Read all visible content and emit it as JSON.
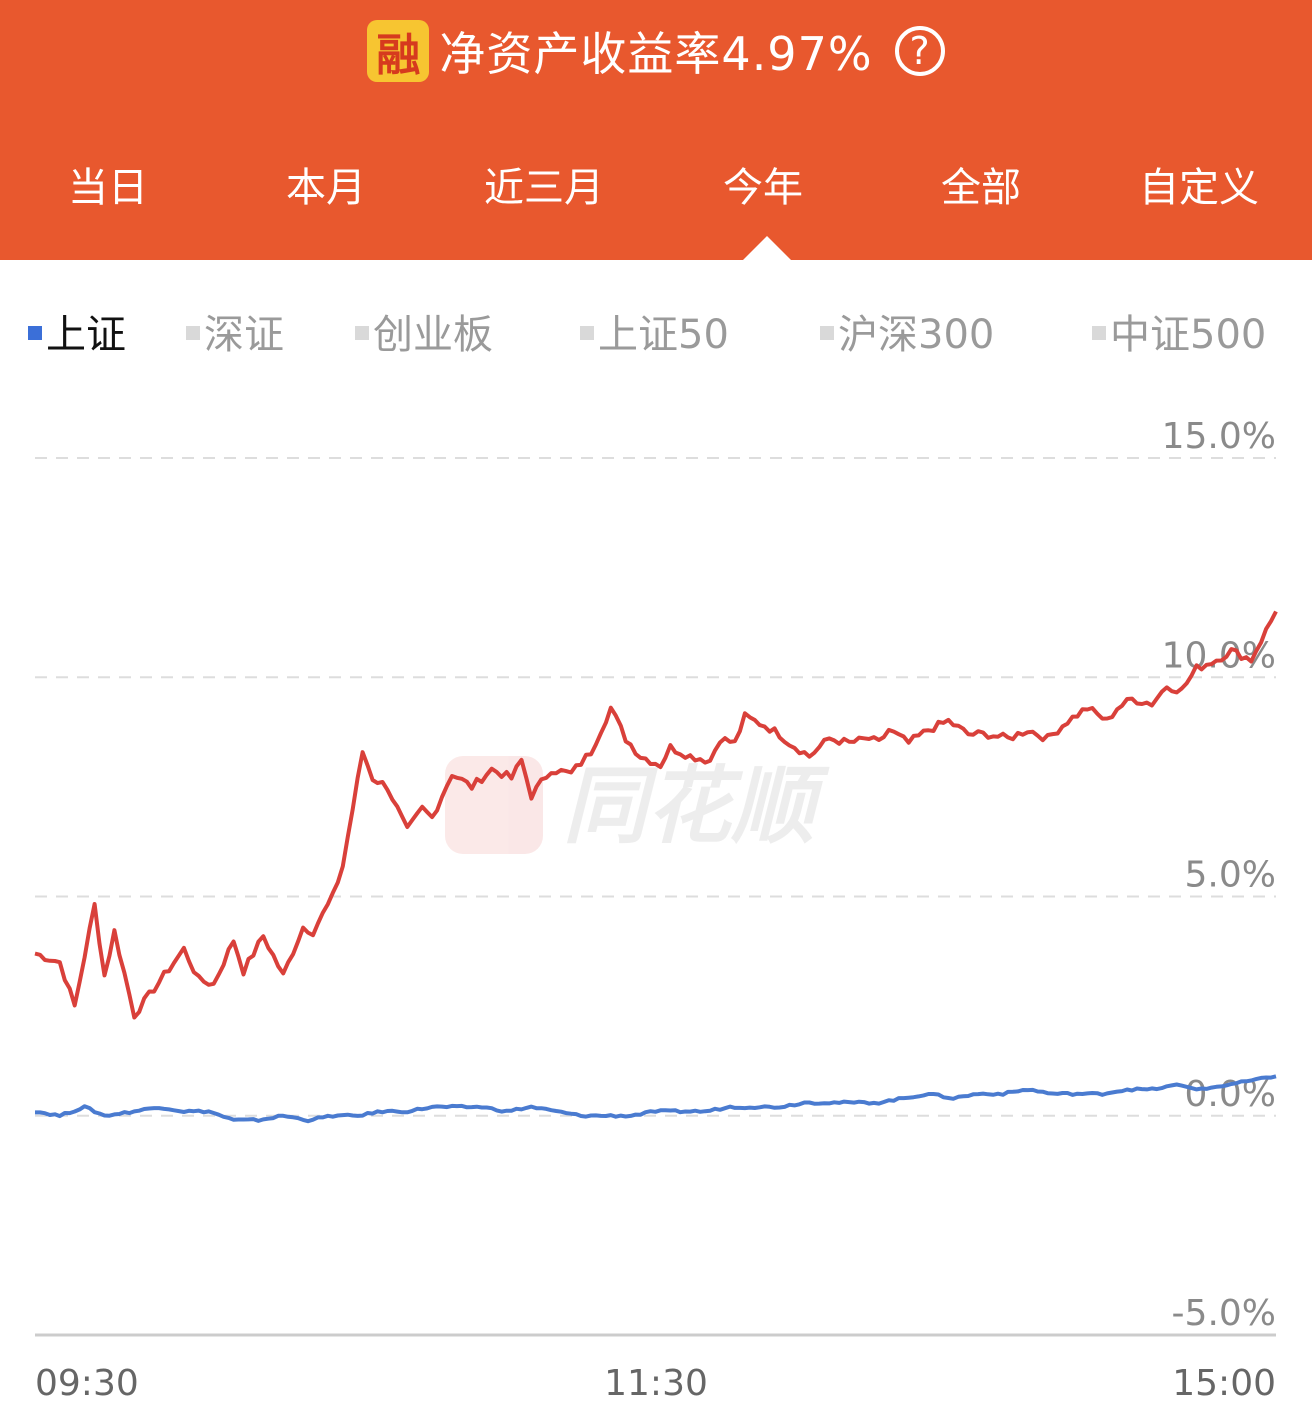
{
  "header": {
    "badge": "融",
    "title": "净资产收益率4.97%",
    "help_icon": "question-circle-icon"
  },
  "tabs": [
    "当日",
    "本月",
    "近三月",
    "今年",
    "全部",
    "自定义"
  ],
  "active_tab": "今年",
  "legend": [
    {
      "label": "上证",
      "active": true
    },
    {
      "label": "深证",
      "active": false
    },
    {
      "label": "创业板",
      "active": false
    },
    {
      "label": "上证50",
      "active": false
    },
    {
      "label": "沪深300",
      "active": false
    },
    {
      "label": "中证500",
      "active": false
    }
  ],
  "watermark": "同花顺",
  "colors": {
    "header_bg": "#E8582E",
    "badge_bg": "#F7C531",
    "account_line": "#D9403A",
    "index_line": "#4A7BD0",
    "legend_active": "#3B6FD8",
    "legend_inactive": "#D9D9D9",
    "grid": "#DDDDDD"
  },
  "chart_data": {
    "type": "line",
    "ylim": [
      -5,
      15
    ],
    "yticks": [
      "15.0%",
      "10.0%",
      "5.0%",
      "0.0%",
      "-5.0%"
    ],
    "xticks": [
      "09:30",
      "11:30",
      "15:00"
    ],
    "grid": true,
    "x_count": 251,
    "series": [
      {
        "key": "account",
        "color": "#D9403A",
        "points": [
          [
            0,
            3.7
          ],
          [
            5,
            3.5
          ],
          [
            8,
            2.5
          ],
          [
            12,
            4.8
          ],
          [
            14,
            3.2
          ],
          [
            16,
            4.2
          ],
          [
            20,
            2.3
          ],
          [
            24,
            2.9
          ],
          [
            30,
            3.8
          ],
          [
            33,
            3.1
          ],
          [
            36,
            3.0
          ],
          [
            40,
            4.0
          ],
          [
            42,
            3.3
          ],
          [
            46,
            4.1
          ],
          [
            50,
            3.2
          ],
          [
            54,
            4.3
          ],
          [
            56,
            4.2
          ],
          [
            60,
            5.0
          ],
          [
            62,
            5.7
          ],
          [
            66,
            8.3
          ],
          [
            68,
            7.7
          ],
          [
            71,
            7.5
          ],
          [
            75,
            6.5
          ],
          [
            78,
            7.0
          ],
          [
            80,
            6.8
          ],
          [
            84,
            7.8
          ],
          [
            88,
            7.5
          ],
          [
            92,
            7.9
          ],
          [
            96,
            7.7
          ],
          [
            98,
            8.1
          ],
          [
            100,
            7.3
          ],
          [
            104,
            7.9
          ],
          [
            108,
            7.8
          ],
          [
            112,
            8.3
          ],
          [
            116,
            9.3
          ],
          [
            119,
            8.6
          ],
          [
            122,
            8.2
          ],
          [
            126,
            8.0
          ],
          [
            128,
            8.4
          ],
          [
            132,
            8.2
          ],
          [
            136,
            8.1
          ],
          [
            138,
            8.6
          ],
          [
            141,
            8.5
          ],
          [
            143,
            9.1
          ],
          [
            147,
            8.9
          ],
          [
            150,
            8.7
          ],
          [
            152,
            8.5
          ],
          [
            156,
            8.2
          ],
          [
            160,
            8.6
          ],
          [
            164,
            8.5
          ],
          [
            168,
            8.6
          ],
          [
            170,
            8.5
          ],
          [
            172,
            8.8
          ],
          [
            176,
            8.5
          ],
          [
            180,
            8.8
          ],
          [
            184,
            9.0
          ],
          [
            188,
            8.7
          ],
          [
            192,
            8.7
          ],
          [
            196,
            8.6
          ],
          [
            200,
            8.8
          ],
          [
            204,
            8.6
          ],
          [
            208,
            9.0
          ],
          [
            212,
            9.3
          ],
          [
            216,
            9.0
          ],
          [
            218,
            9.3
          ],
          [
            221,
            9.5
          ],
          [
            225,
            9.4
          ],
          [
            228,
            9.8
          ],
          [
            231,
            9.7
          ],
          [
            234,
            10.2
          ],
          [
            238,
            10.4
          ],
          [
            241,
            10.6
          ],
          [
            245,
            10.4
          ],
          [
            250,
            11.5
          ]
        ]
      },
      {
        "key": "index",
        "color": "#4A7BD0",
        "points": [
          [
            0,
            0.1
          ],
          [
            5,
            0.0
          ],
          [
            10,
            0.2
          ],
          [
            14,
            0.0
          ],
          [
            20,
            0.1
          ],
          [
            25,
            0.2
          ],
          [
            30,
            0.1
          ],
          [
            35,
            0.1
          ],
          [
            40,
            -0.1
          ],
          [
            45,
            -0.1
          ],
          [
            50,
            0.0
          ],
          [
            55,
            -0.1
          ],
          [
            60,
            0.0
          ],
          [
            65,
            0.0
          ],
          [
            70,
            0.1
          ],
          [
            75,
            0.1
          ],
          [
            80,
            0.2
          ],
          [
            85,
            0.2
          ],
          [
            90,
            0.2
          ],
          [
            95,
            0.1
          ],
          [
            100,
            0.2
          ],
          [
            105,
            0.1
          ],
          [
            110,
            0.0
          ],
          [
            115,
            0.0
          ],
          [
            120,
            0.0
          ],
          [
            125,
            0.1
          ],
          [
            130,
            0.1
          ],
          [
            135,
            0.1
          ],
          [
            140,
            0.2
          ],
          [
            145,
            0.2
          ],
          [
            150,
            0.2
          ],
          [
            155,
            0.3
          ],
          [
            160,
            0.3
          ],
          [
            165,
            0.3
          ],
          [
            170,
            0.3
          ],
          [
            175,
            0.4
          ],
          [
            180,
            0.5
          ],
          [
            185,
            0.4
          ],
          [
            190,
            0.5
          ],
          [
            195,
            0.5
          ],
          [
            200,
            0.6
          ],
          [
            205,
            0.5
          ],
          [
            210,
            0.5
          ],
          [
            215,
            0.5
          ],
          [
            220,
            0.6
          ],
          [
            225,
            0.6
          ],
          [
            230,
            0.7
          ],
          [
            235,
            0.6
          ],
          [
            240,
            0.7
          ],
          [
            245,
            0.8
          ],
          [
            250,
            0.9
          ]
        ]
      }
    ]
  }
}
